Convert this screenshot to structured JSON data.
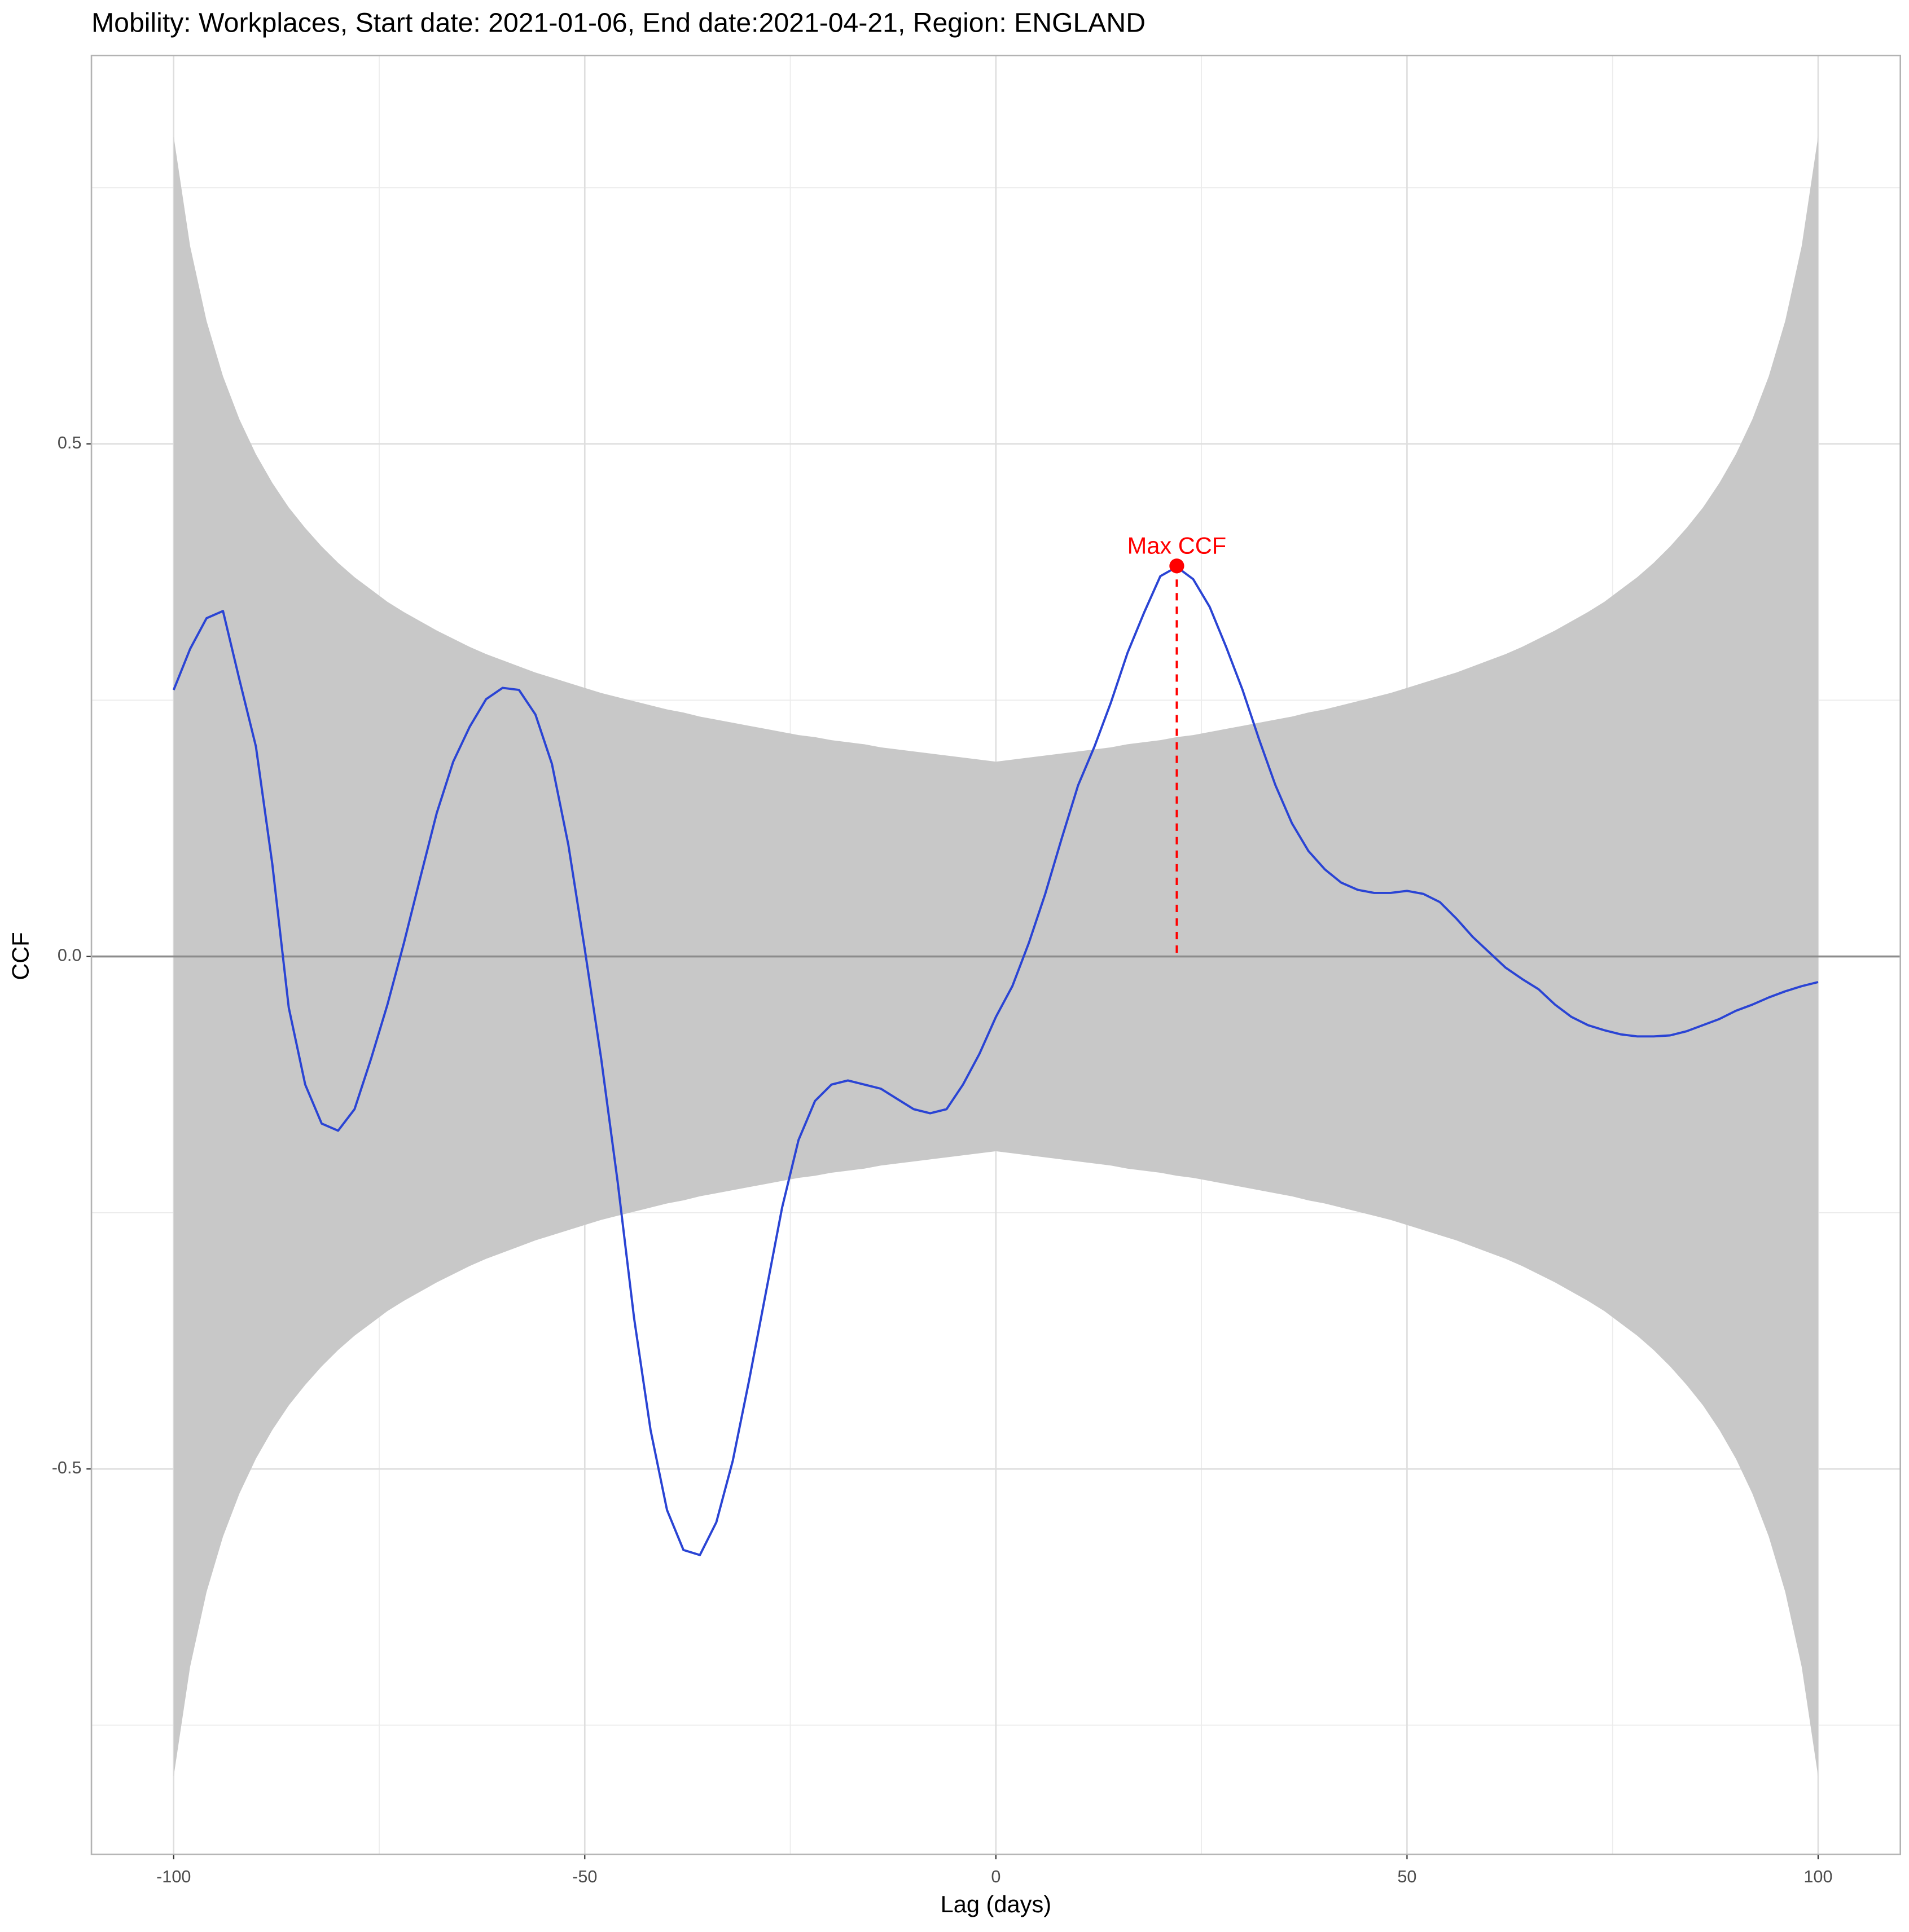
{
  "chart_data": {
    "type": "line",
    "title": "Mobility: Workplaces, Start date: 2021-01-06, End date:2021-04-21, Region: ENGLAND",
    "xlabel": "Lag (days)",
    "ylabel": "CCF",
    "x": [
      -100,
      -98,
      -96,
      -94,
      -92,
      -90,
      -88,
      -86,
      -84,
      -82,
      -80,
      -78,
      -76,
      -74,
      -72,
      -70,
      -68,
      -66,
      -64,
      -62,
      -60,
      -58,
      -56,
      -54,
      -52,
      -50,
      -48,
      -46,
      -44,
      -42,
      -40,
      -38,
      -36,
      -34,
      -32,
      -30,
      -28,
      -26,
      -24,
      -22,
      -20,
      -18,
      -16,
      -14,
      -12,
      -10,
      -8,
      -6,
      -4,
      -2,
      0,
      2,
      4,
      6,
      8,
      10,
      12,
      14,
      16,
      18,
      20,
      22,
      24,
      26,
      28,
      30,
      32,
      34,
      36,
      38,
      40,
      42,
      44,
      46,
      48,
      50,
      52,
      54,
      56,
      58,
      60,
      62,
      64,
      66,
      68,
      70,
      72,
      74,
      76,
      78,
      80,
      82,
      84,
      86,
      88,
      90,
      92,
      94,
      96,
      98,
      100
    ],
    "series": [
      {
        "color": "#2a44d4",
        "values": [
          0.26,
          0.3,
          0.33,
          0.337,
          0.27,
          0.205,
          0.09,
          -0.05,
          -0.125,
          -0.163,
          -0.17,
          -0.149,
          -0.1,
          -0.047,
          0.013,
          0.077,
          0.14,
          0.19,
          0.224,
          0.251,
          0.262,
          0.26,
          0.236,
          0.188,
          0.109,
          0.007,
          -0.1,
          -0.22,
          -0.353,
          -0.462,
          -0.54,
          -0.579,
          -0.584,
          -0.552,
          -0.492,
          -0.413,
          -0.329,
          -0.245,
          -0.179,
          -0.141,
          -0.125,
          -0.121,
          -0.125,
          -0.129,
          -0.139,
          -0.149,
          -0.153,
          -0.149,
          -0.125,
          -0.095,
          -0.059,
          -0.029,
          0.013,
          0.061,
          0.115,
          0.167,
          0.205,
          0.248,
          0.296,
          0.335,
          0.371,
          0.38,
          0.368,
          0.341,
          0.302,
          0.26,
          0.212,
          0.167,
          0.13,
          0.103,
          0.085,
          0.072,
          0.065,
          0.062,
          0.062,
          0.064,
          0.061,
          0.053,
          0.037,
          0.019,
          0.004,
          -0.011,
          -0.022,
          -0.032,
          -0.047,
          -0.059,
          -0.067,
          -0.072,
          -0.076,
          -0.078,
          -0.078,
          -0.077,
          -0.073,
          -0.067,
          -0.061,
          -0.053,
          -0.047,
          -0.04,
          -0.034,
          -0.029,
          -0.025
        ]
      }
    ],
    "band": {
      "color": "#c8c8c8",
      "upper": [
        0.8,
        0.693,
        0.62,
        0.566,
        0.524,
        0.49,
        0.462,
        0.438,
        0.418,
        0.4,
        0.384,
        0.37,
        0.358,
        0.346,
        0.336,
        0.327,
        0.318,
        0.31,
        0.302,
        0.295,
        0.289,
        0.283,
        0.277,
        0.272,
        0.267,
        0.262,
        0.257,
        0.253,
        0.249,
        0.245,
        0.241,
        0.238,
        0.234,
        0.231,
        0.228,
        0.225,
        0.222,
        0.219,
        0.216,
        0.214,
        0.211,
        0.209,
        0.207,
        0.204,
        0.202,
        0.2,
        0.198,
        0.196,
        0.194,
        0.192,
        0.19,
        0.192,
        0.194,
        0.196,
        0.198,
        0.2,
        0.202,
        0.204,
        0.207,
        0.209,
        0.211,
        0.214,
        0.216,
        0.219,
        0.222,
        0.225,
        0.228,
        0.231,
        0.234,
        0.238,
        0.241,
        0.245,
        0.249,
        0.253,
        0.257,
        0.262,
        0.267,
        0.272,
        0.277,
        0.283,
        0.289,
        0.295,
        0.302,
        0.31,
        0.318,
        0.327,
        0.336,
        0.346,
        0.358,
        0.37,
        0.384,
        0.4,
        0.418,
        0.438,
        0.462,
        0.49,
        0.524,
        0.566,
        0.62,
        0.693,
        0.8
      ],
      "lower": [
        -0.8,
        -0.693,
        -0.62,
        -0.566,
        -0.524,
        -0.49,
        -0.462,
        -0.438,
        -0.418,
        -0.4,
        -0.384,
        -0.37,
        -0.358,
        -0.346,
        -0.336,
        -0.327,
        -0.318,
        -0.31,
        -0.302,
        -0.295,
        -0.289,
        -0.283,
        -0.277,
        -0.272,
        -0.267,
        -0.262,
        -0.257,
        -0.253,
        -0.249,
        -0.245,
        -0.241,
        -0.238,
        -0.234,
        -0.231,
        -0.228,
        -0.225,
        -0.222,
        -0.219,
        -0.216,
        -0.214,
        -0.211,
        -0.209,
        -0.207,
        -0.204,
        -0.202,
        -0.2,
        -0.198,
        -0.196,
        -0.194,
        -0.192,
        -0.19,
        -0.192,
        -0.194,
        -0.196,
        -0.198,
        -0.2,
        -0.202,
        -0.204,
        -0.207,
        -0.209,
        -0.211,
        -0.214,
        -0.216,
        -0.219,
        -0.222,
        -0.225,
        -0.228,
        -0.231,
        -0.234,
        -0.238,
        -0.241,
        -0.245,
        -0.249,
        -0.253,
        -0.257,
        -0.262,
        -0.267,
        -0.272,
        -0.277,
        -0.283,
        -0.289,
        -0.295,
        -0.302,
        -0.31,
        -0.318,
        -0.327,
        -0.336,
        -0.346,
        -0.358,
        -0.37,
        -0.384,
        -0.4,
        -0.418,
        -0.438,
        -0.462,
        -0.49,
        -0.524,
        -0.566,
        -0.62,
        -0.693,
        -0.8
      ]
    },
    "annotation": {
      "label": "Max CCF",
      "x": 22,
      "y": 0.381,
      "color": "#ff0000"
    },
    "reference_line": 0,
    "xlim": [
      -110,
      110
    ],
    "ylim": [
      -0.876,
      0.879
    ],
    "xticks": [
      -100,
      -50,
      0,
      50,
      100
    ],
    "yticks": [
      -0.5,
      {
        "value": 0,
        "label": "0.0"
      },
      0.5
    ],
    "minor_xticks": [
      -75,
      -25,
      25,
      75
    ],
    "minor_yticks": [
      -0.75,
      -0.25,
      0.25,
      0.75
    ],
    "grid": true
  }
}
